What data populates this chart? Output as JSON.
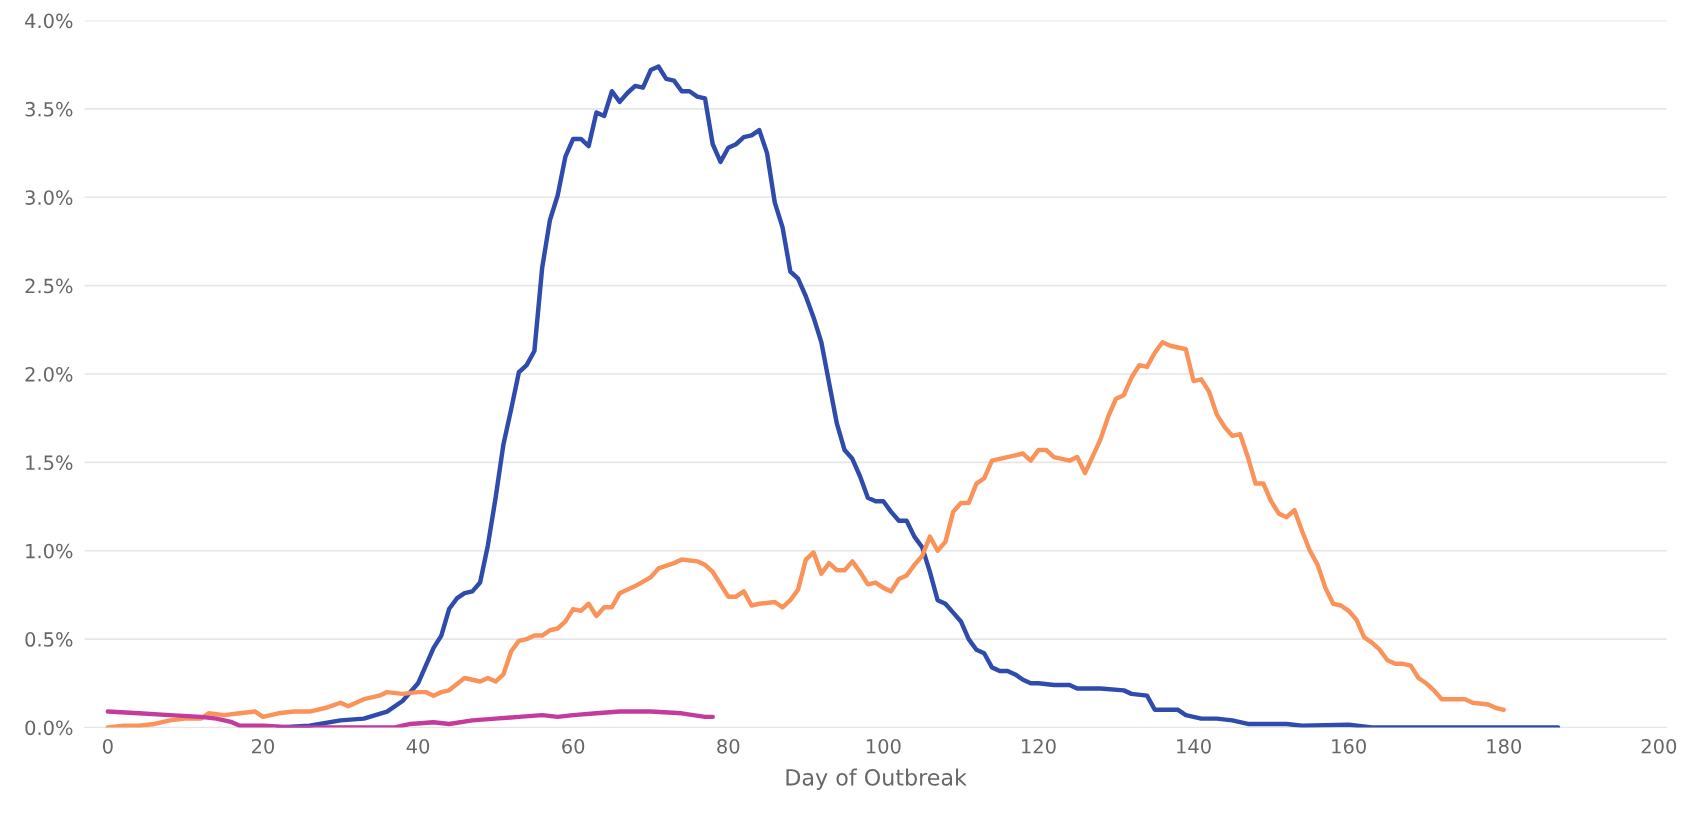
{
  "chart_data": {
    "type": "line",
    "xlabel": "Day of Outbreak",
    "xlim": [
      -3,
      201
    ],
    "xticks": [
      0,
      20,
      40,
      60,
      80,
      100,
      120,
      140,
      160,
      180,
      200
    ],
    "ylim": [
      0,
      4.0
    ],
    "yticks": [
      {
        "value": 0,
        "label": "0.0%"
      },
      {
        "value": 0.5,
        "label": "0.5%"
      },
      {
        "value": 1.0,
        "label": "1.0%"
      },
      {
        "value": 1.5,
        "label": "1.5%"
      },
      {
        "value": 2.0,
        "label": "2.0%"
      },
      {
        "value": 2.5,
        "label": "2.5%"
      },
      {
        "value": 3.0,
        "label": "3.0%"
      },
      {
        "value": 3.5,
        "label": "3.5%"
      },
      {
        "value": 4.0,
        "label": "4.0%"
      }
    ],
    "grid": "y",
    "marker": "none",
    "line_style": "solid",
    "series": [
      {
        "color": "#2f4bab",
        "x": [
          22,
          26,
          30,
          33,
          36,
          38,
          40,
          42,
          43,
          44,
          45,
          46,
          47,
          48,
          49,
          50,
          51,
          52,
          53,
          54,
          55,
          56,
          57,
          58,
          59,
          60,
          61,
          62,
          63,
          64,
          65,
          66,
          67,
          68,
          69,
          70,
          71,
          72,
          73,
          74,
          75,
          76,
          77,
          78,
          79,
          80,
          81,
          82,
          83,
          84,
          85,
          86,
          87,
          88,
          89,
          90,
          91,
          92,
          93,
          94,
          95,
          96,
          97,
          98,
          99,
          100,
          101,
          102,
          103,
          104,
          105,
          106,
          107,
          108,
          109,
          110,
          111,
          112,
          113,
          114,
          115,
          116,
          117,
          118,
          119,
          120,
          122,
          124,
          125,
          128,
          131,
          132,
          134,
          135,
          138,
          139,
          141,
          143,
          145,
          147,
          152,
          154,
          160,
          163,
          175,
          187
        ],
        "values": [
          0.0,
          0.01,
          0.04,
          0.05,
          0.09,
          0.15,
          0.25,
          0.45,
          0.52,
          0.67,
          0.73,
          0.76,
          0.77,
          0.82,
          1.03,
          1.3,
          1.6,
          1.8,
          2.01,
          2.05,
          2.13,
          2.6,
          2.87,
          3.01,
          3.23,
          3.33,
          3.33,
          3.29,
          3.48,
          3.46,
          3.6,
          3.54,
          3.59,
          3.63,
          3.62,
          3.72,
          3.74,
          3.67,
          3.66,
          3.6,
          3.6,
          3.57,
          3.56,
          3.3,
          3.2,
          3.28,
          3.3,
          3.34,
          3.35,
          3.38,
          3.25,
          2.97,
          2.83,
          2.58,
          2.54,
          2.44,
          2.32,
          2.18,
          1.95,
          1.72,
          1.57,
          1.52,
          1.42,
          1.3,
          1.28,
          1.28,
          1.22,
          1.17,
          1.17,
          1.08,
          1.02,
          0.88,
          0.72,
          0.7,
          0.65,
          0.6,
          0.5,
          0.44,
          0.42,
          0.34,
          0.32,
          0.32,
          0.3,
          0.27,
          0.25,
          0.25,
          0.24,
          0.24,
          0.22,
          0.22,
          0.21,
          0.19,
          0.18,
          0.1,
          0.1,
          0.07,
          0.05,
          0.05,
          0.04,
          0.02,
          0.02,
          0.01,
          0.015,
          0.0,
          0.0,
          0.0
        ]
      },
      {
        "color": "#f9935a",
        "x": [
          0,
          2,
          4,
          6,
          8,
          10,
          12,
          13,
          15,
          17,
          19,
          20,
          22,
          24,
          26,
          28,
          30,
          31,
          33,
          34,
          35,
          36,
          38,
          40,
          41,
          42,
          43,
          44,
          46,
          47,
          48,
          49,
          50,
          51,
          52,
          53,
          54,
          55,
          56,
          57,
          58,
          59,
          60,
          61,
          62,
          63,
          64,
          65,
          66,
          68,
          70,
          71,
          73,
          74,
          76,
          77,
          78,
          80,
          81,
          82,
          83,
          84,
          86,
          87,
          88,
          89,
          90,
          91,
          92,
          93,
          94,
          95,
          96,
          97,
          98,
          99,
          100,
          101,
          102,
          103,
          104,
          105,
          106,
          107,
          108,
          109,
          110,
          111,
          112,
          113,
          114,
          116,
          118,
          119,
          120,
          121,
          122,
          123,
          124,
          125,
          126,
          128,
          129,
          130,
          131,
          132,
          133,
          134,
          135,
          136,
          137,
          138,
          139,
          140,
          141,
          142,
          143,
          144,
          145,
          146,
          147,
          148,
          149,
          150,
          151,
          152,
          153,
          154,
          155,
          156,
          157,
          158,
          159,
          160,
          161,
          162,
          163,
          164,
          165,
          166,
          167,
          168,
          169,
          170,
          171,
          172,
          174,
          175,
          176,
          178,
          179,
          180
        ],
        "values": [
          0.0,
          0.01,
          0.01,
          0.02,
          0.04,
          0.05,
          0.05,
          0.08,
          0.07,
          0.08,
          0.09,
          0.06,
          0.08,
          0.09,
          0.09,
          0.11,
          0.14,
          0.12,
          0.16,
          0.17,
          0.18,
          0.2,
          0.19,
          0.2,
          0.2,
          0.18,
          0.2,
          0.21,
          0.28,
          0.27,
          0.26,
          0.28,
          0.26,
          0.3,
          0.43,
          0.49,
          0.5,
          0.52,
          0.52,
          0.55,
          0.56,
          0.6,
          0.67,
          0.66,
          0.7,
          0.63,
          0.68,
          0.68,
          0.76,
          0.8,
          0.85,
          0.9,
          0.93,
          0.95,
          0.94,
          0.92,
          0.88,
          0.74,
          0.74,
          0.77,
          0.69,
          0.7,
          0.71,
          0.68,
          0.72,
          0.78,
          0.95,
          0.99,
          0.87,
          0.93,
          0.89,
          0.89,
          0.94,
          0.88,
          0.81,
          0.82,
          0.79,
          0.77,
          0.84,
          0.86,
          0.92,
          0.97,
          1.08,
          1.0,
          1.05,
          1.22,
          1.27,
          1.27,
          1.38,
          1.41,
          1.51,
          1.53,
          1.55,
          1.51,
          1.57,
          1.57,
          1.53,
          1.52,
          1.51,
          1.53,
          1.44,
          1.63,
          1.76,
          1.86,
          1.88,
          1.98,
          2.05,
          2.04,
          2.12,
          2.18,
          2.16,
          2.15,
          2.14,
          1.96,
          1.97,
          1.9,
          1.77,
          1.7,
          1.65,
          1.66,
          1.53,
          1.38,
          1.38,
          1.28,
          1.21,
          1.19,
          1.23,
          1.11,
          1.0,
          0.92,
          0.79,
          0.7,
          0.69,
          0.66,
          0.61,
          0.51,
          0.48,
          0.44,
          0.38,
          0.36,
          0.36,
          0.35,
          0.28,
          0.25,
          0.21,
          0.16,
          0.16,
          0.16,
          0.14,
          0.13,
          0.11,
          0.1
        ]
      },
      {
        "color": "#c43b9e",
        "x": [
          0,
          4,
          8,
          12,
          14,
          16,
          17,
          20,
          24,
          30,
          35,
          37,
          39,
          42,
          44,
          47,
          50,
          53,
          56,
          58,
          60,
          63,
          66,
          70,
          74,
          77,
          78
        ],
        "values": [
          0.09,
          0.08,
          0.07,
          0.06,
          0.05,
          0.03,
          0.01,
          0.01,
          0.0,
          0.0,
          0.0,
          0.0,
          0.02,
          0.03,
          0.02,
          0.04,
          0.05,
          0.06,
          0.07,
          0.06,
          0.07,
          0.08,
          0.09,
          0.09,
          0.08,
          0.06,
          0.06
        ]
      }
    ]
  }
}
